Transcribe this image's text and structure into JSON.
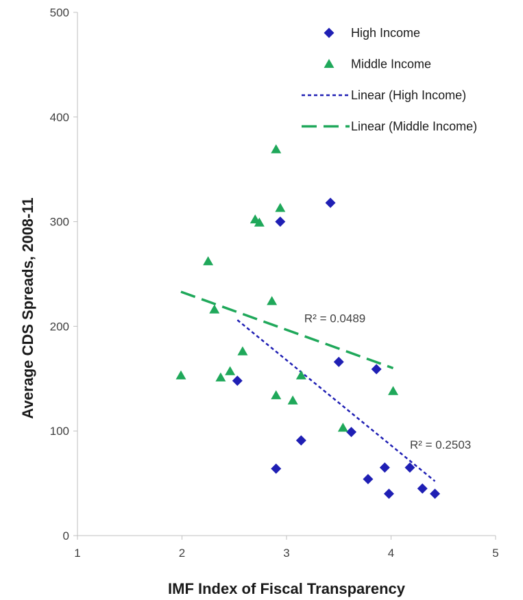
{
  "chart_data": {
    "type": "scatter",
    "title": "",
    "xlabel": "IMF Index of Fiscal Transparency",
    "ylabel": "Average CDS Spreads, 2008-11",
    "xlim": [
      1,
      5
    ],
    "ylim": [
      0,
      500
    ],
    "x_ticks": [
      "1",
      "2",
      "3",
      "4",
      "5"
    ],
    "y_ticks": [
      "0",
      "100",
      "200",
      "300",
      "400",
      "500"
    ],
    "grid": false,
    "legend_position": "top-right",
    "series": [
      {
        "name": "High Income",
        "marker": "diamond",
        "color": "#1f1fb4",
        "points": [
          {
            "x": 2.53,
            "y": 148
          },
          {
            "x": 2.9,
            "y": 64
          },
          {
            "x": 2.94,
            "y": 300
          },
          {
            "x": 3.14,
            "y": 91
          },
          {
            "x": 3.42,
            "y": 318
          },
          {
            "x": 3.5,
            "y": 166
          },
          {
            "x": 3.62,
            "y": 99
          },
          {
            "x": 3.78,
            "y": 54
          },
          {
            "x": 3.86,
            "y": 159
          },
          {
            "x": 3.94,
            "y": 65
          },
          {
            "x": 3.98,
            "y": 40
          },
          {
            "x": 4.18,
            "y": 65
          },
          {
            "x": 4.3,
            "y": 45
          },
          {
            "x": 4.42,
            "y": 40
          }
        ]
      },
      {
        "name": "Middle Income",
        "marker": "triangle",
        "color": "#1fa85a",
        "points": [
          {
            "x": 1.99,
            "y": 153
          },
          {
            "x": 2.25,
            "y": 262
          },
          {
            "x": 2.31,
            "y": 216
          },
          {
            "x": 2.37,
            "y": 151
          },
          {
            "x": 2.46,
            "y": 157
          },
          {
            "x": 2.58,
            "y": 176
          },
          {
            "x": 2.7,
            "y": 302
          },
          {
            "x": 2.74,
            "y": 299
          },
          {
            "x": 2.86,
            "y": 224
          },
          {
            "x": 2.9,
            "y": 369
          },
          {
            "x": 2.9,
            "y": 134
          },
          {
            "x": 2.94,
            "y": 313
          },
          {
            "x": 3.06,
            "y": 129
          },
          {
            "x": 3.14,
            "y": 153
          },
          {
            "x": 3.54,
            "y": 103
          },
          {
            "x": 4.02,
            "y": 138
          }
        ]
      }
    ],
    "trendlines": [
      {
        "name": "Linear (High Income)",
        "color": "#1f1fb4",
        "dash": "short",
        "x": [
          2.53,
          4.42
        ],
        "y": [
          206,
          52
        ],
        "r2_label": "R² = 0.2503",
        "r2_at": {
          "x": 4.18,
          "y": 83
        }
      },
      {
        "name": "Linear (Middle Income)",
        "color": "#1fa85a",
        "dash": "long",
        "x": [
          1.99,
          4.02
        ],
        "y": [
          233,
          160
        ],
        "r2_label": "R² = 0.0489",
        "r2_at": {
          "x": 3.17,
          "y": 204
        }
      }
    ]
  }
}
